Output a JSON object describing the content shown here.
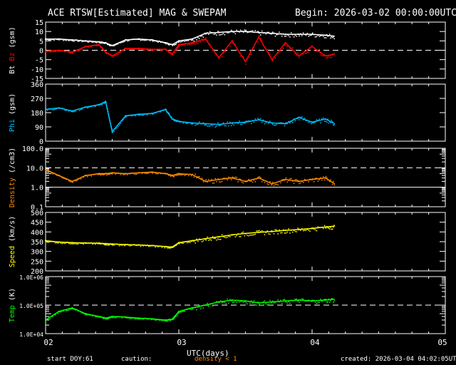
{
  "header": {
    "title": "ACE RTSW[Estimated] MAG & SWEPAM",
    "begin": "Begin: 2026-03-02 00:00:00UTC"
  },
  "footer": {
    "start_doy_label": "start DOY:",
    "start_doy": "61",
    "caution_label": "caution:",
    "caution_text": "density < 1",
    "created": "created: 2026-03-04 04:02:05UTC"
  },
  "colors": {
    "bt": "#ffffff",
    "bz": "#ff0000",
    "phi": "#00bfff",
    "density": "#ff8c00",
    "speed": "#ffff00",
    "temp": "#00ff00"
  },
  "chart_data": {
    "type": "scatter",
    "xlabel": "UTC(days)",
    "xlim": [
      2,
      5
    ],
    "xticks": [
      2,
      3,
      4,
      5
    ],
    "xtick_labels": [
      "02",
      "03",
      "04",
      "05"
    ],
    "x": [
      2.0,
      2.1,
      2.2,
      2.3,
      2.4,
      2.45,
      2.5,
      2.6,
      2.7,
      2.8,
      2.9,
      2.95,
      3.0,
      3.1,
      3.2,
      3.3,
      3.4,
      3.5,
      3.6,
      3.7,
      3.8,
      3.9,
      4.0,
      4.1,
      4.17
    ],
    "panels": [
      {
        "name": "mag",
        "ylabel_parts": [
          "Bt",
          "Bz",
          "(gsm)"
        ],
        "ylim": [
          -15,
          15
        ],
        "scale": "linear",
        "yticks": [
          15,
          10,
          5,
          0,
          -5,
          -10,
          -15
        ],
        "ytick_labels": [
          "15",
          "10",
          "5",
          "0",
          "-5",
          "-10",
          "-15"
        ],
        "dashed": [
          0
        ],
        "series": [
          {
            "name": "Bt",
            "color_key": "bt",
            "values": [
              6,
              6,
              5.5,
              5,
              4.5,
              4,
              2.5,
              5.5,
              6,
              5.5,
              4,
              3,
              5,
              6,
              9,
              9.5,
              10,
              10,
              9.5,
              9,
              8.5,
              8.5,
              8.5,
              8,
              7.5
            ]
          },
          {
            "name": "Bz",
            "color_key": "bz",
            "values": [
              -0.5,
              0,
              -1,
              2,
              3,
              -1,
              -3,
              1,
              1,
              0.5,
              0.5,
              -2,
              3,
              4,
              6,
              -4,
              5,
              -6,
              7,
              -5,
              4,
              -3,
              2,
              -3,
              -2
            ]
          }
        ]
      },
      {
        "name": "phi",
        "ylabel_parts": [
          "Phi",
          "(gsm)"
        ],
        "ylim": [
          0,
          360
        ],
        "scale": "linear",
        "yticks": [
          360,
          270,
          180,
          90,
          0
        ],
        "ytick_labels": [
          "360",
          "270",
          "180",
          "90",
          "0"
        ],
        "dashed": [],
        "series": [
          {
            "name": "Phi",
            "color_key": "phi",
            "values": [
              200,
              210,
              190,
              215,
              230,
              250,
              60,
              160,
              170,
              175,
              200,
              140,
              125,
              115,
              110,
              105,
              115,
              120,
              135,
              115,
              110,
              150,
              120,
              140,
              110
            ]
          }
        ]
      },
      {
        "name": "density",
        "ylabel_parts": [
          "Density",
          "(/cm3)"
        ],
        "ylim": [
          0.1,
          100
        ],
        "scale": "log",
        "yticks": [
          100,
          10,
          1,
          0.1
        ],
        "ytick_labels": [
          "100.0",
          "10.0",
          "1.0",
          "0.1"
        ],
        "dashed": [
          10
        ],
        "solid": [
          1
        ],
        "series": [
          {
            "name": "Density",
            "color_key": "density",
            "values": [
              8,
              4,
              2,
              4,
              5,
              5,
              5.5,
              5,
              5.5,
              6,
              5,
              4,
              5,
              4.5,
              2,
              2.5,
              3,
              2,
              3,
              1.5,
              2.5,
              2,
              2.5,
              3,
              1.5
            ]
          }
        ]
      },
      {
        "name": "speed",
        "ylabel_parts": [
          "Speed",
          "(km/s)"
        ],
        "ylim": [
          200,
          500
        ],
        "scale": "linear",
        "yticks": [
          500,
          450,
          400,
          350,
          300,
          250,
          200
        ],
        "ytick_labels": [
          "500",
          "450",
          "400",
          "350",
          "300",
          "250",
          "200"
        ],
        "dashed": [],
        "series": [
          {
            "name": "Speed",
            "color_key": "speed",
            "values": [
              355,
              348,
              345,
              343,
              342,
              340,
              338,
              335,
              333,
              330,
              325,
              322,
              345,
              355,
              365,
              375,
              385,
              392,
              398,
              402,
              408,
              412,
              418,
              425,
              430
            ]
          }
        ]
      },
      {
        "name": "temp",
        "ylabel_parts": [
          "Temp",
          "(K)"
        ],
        "ylim": [
          10000,
          1000000
        ],
        "scale": "log",
        "yticks": [
          1000000,
          100000,
          10000
        ],
        "ytick_labels": [
          "1.0E+06",
          "1.0E+05",
          "1.0E+04"
        ],
        "dashed": [
          100000
        ],
        "series": [
          {
            "name": "Temp",
            "color_key": "temp",
            "values": [
              30000,
              60000,
              80000,
              50000,
              40000,
              35000,
              40000,
              38000,
              35000,
              33000,
              30000,
              32000,
              60000,
              80000,
              100000,
              130000,
              150000,
              140000,
              120000,
              130000,
              140000,
              150000,
              140000,
              150000,
              160000
            ]
          }
        ]
      }
    ]
  }
}
